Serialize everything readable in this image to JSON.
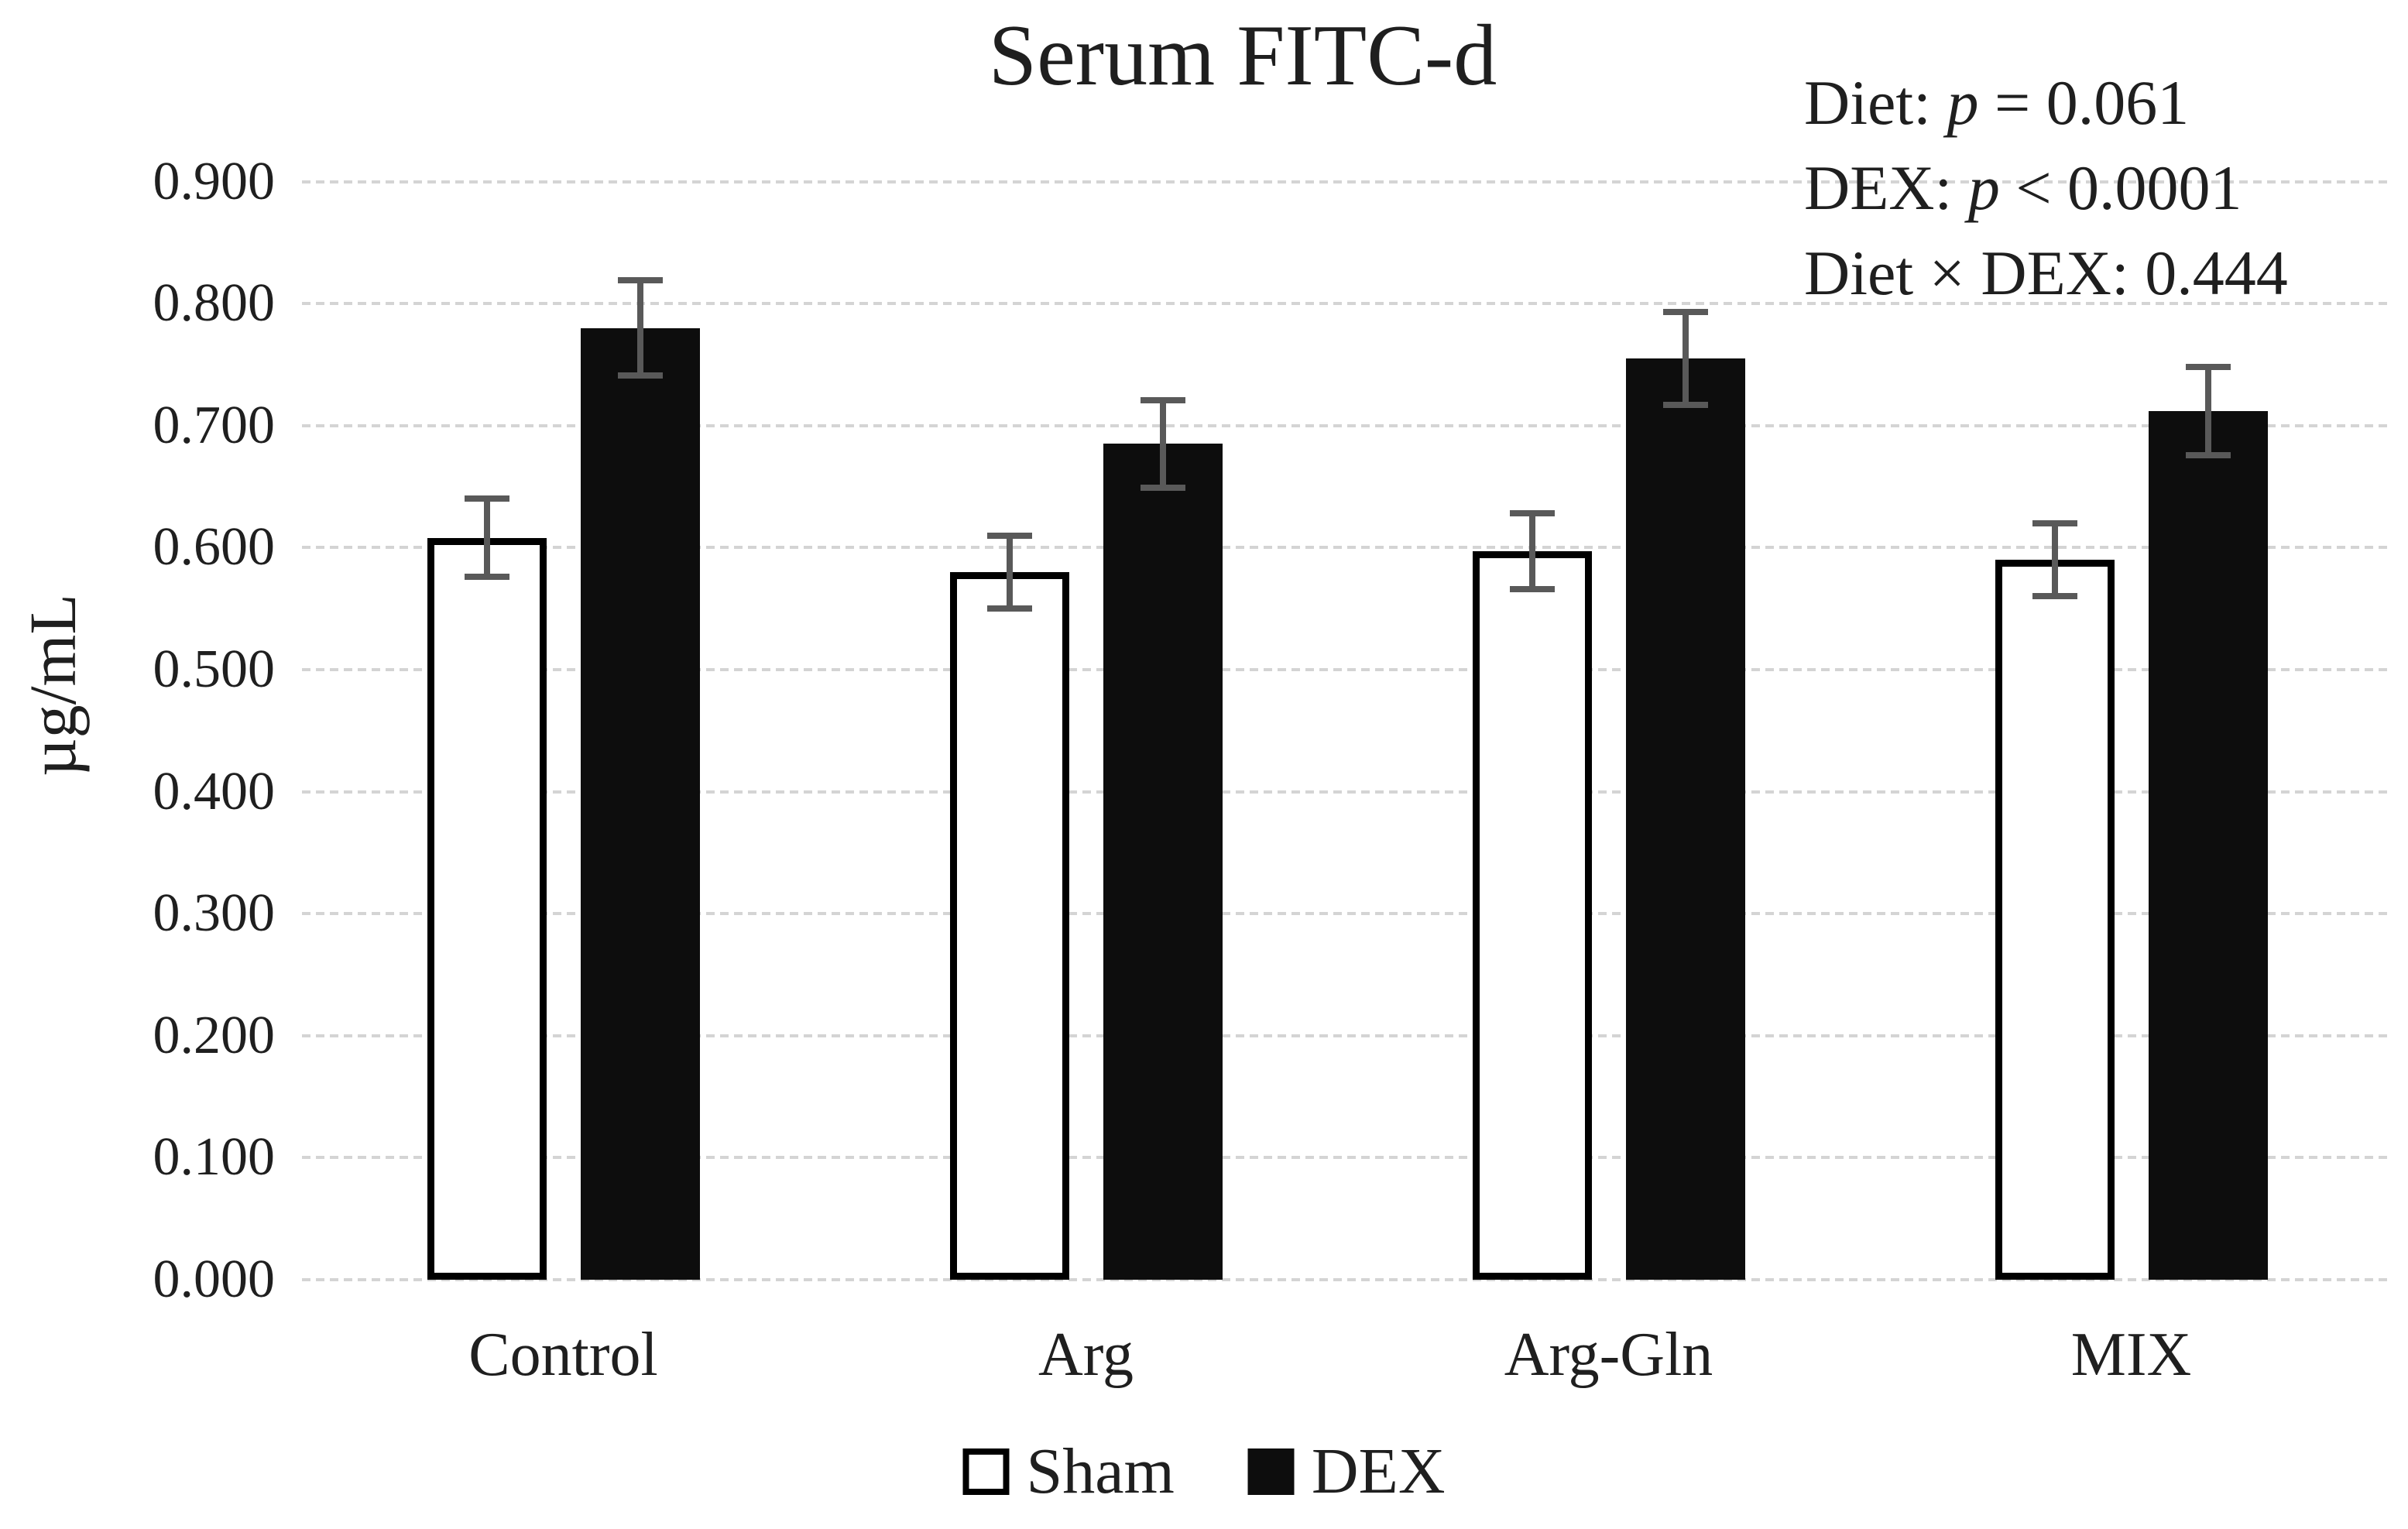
{
  "title": "Serum FITC-d",
  "y_axis_label": "µg/mL",
  "annotations": [
    {
      "pre": "Diet: ",
      "pvar": "p",
      "rest": " = 0.061",
      "text": "Diet: p = 0.061"
    },
    {
      "pre": "DEX: ",
      "pvar": "p",
      "rest": " < 0.0001",
      "text": "DEX: p < 0.0001"
    },
    {
      "pre": "Diet × DEX: 0.444",
      "pvar": "",
      "rest": "",
      "text": "Diet × DEX: 0.444"
    }
  ],
  "legend": [
    {
      "label": "Sham",
      "fill": "#ffffff"
    },
    {
      "label": "DEX",
      "fill": "#0d0d0d"
    }
  ],
  "colors": {
    "bar_outline": "#000000",
    "bar_fill_dex": "#0d0d0d",
    "bar_fill_sham": "#ffffff",
    "error_bar": "#595959",
    "gridline": "#d4d4d4",
    "text": "#1f1f1f"
  },
  "chart_data": {
    "type": "bar",
    "title": "Serum FITC-d",
    "xlabel": "",
    "ylabel": "µg/mL",
    "categories": [
      "Control",
      "Arg",
      "Arg-Gln",
      "MIX"
    ],
    "series": [
      {
        "name": "Sham",
        "values": [
          0.608,
          0.58,
          0.597,
          0.59
        ],
        "errors": [
          0.032,
          0.03,
          0.031,
          0.03
        ]
      },
      {
        "name": "DEX",
        "values": [
          0.78,
          0.685,
          0.755,
          0.712
        ],
        "errors": [
          0.039,
          0.036,
          0.038,
          0.036
        ]
      }
    ],
    "ylim": [
      0,
      0.9
    ],
    "ytick_step": 0.1,
    "y_ticks": [
      "0.000",
      "0.100",
      "0.200",
      "0.300",
      "0.400",
      "0.500",
      "0.600",
      "0.700",
      "0.800",
      "0.900"
    ],
    "grid": true,
    "legend_position": "bottom",
    "stat_annotations": [
      "Diet: p = 0.061",
      "DEX: p < 0.0001",
      "Diet × DEX: 0.444"
    ]
  }
}
